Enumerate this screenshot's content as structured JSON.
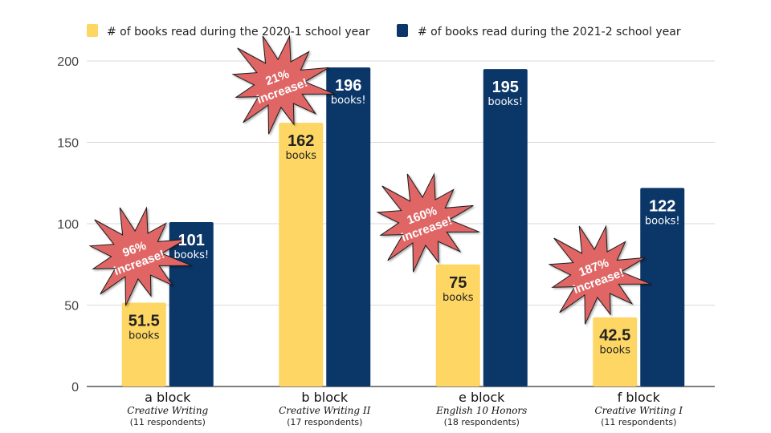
{
  "chart_data": {
    "type": "bar",
    "title": "",
    "xlabel": "",
    "ylabel": "",
    "ylim": [
      0,
      200
    ],
    "yticks": [
      0,
      50,
      100,
      150,
      200
    ],
    "grid": true,
    "legend_position": "top",
    "categories": [
      "a block",
      "b block",
      "e block",
      "f block"
    ],
    "category_subtitles": [
      "Creative Writing",
      "Creative Writing II",
      "English 10 Honors",
      "Creative Writing I"
    ],
    "category_respondents": [
      "(11 respondents)",
      "(17 respondents)",
      "(18 respondents)",
      "(11 respondents)"
    ],
    "series": [
      {
        "name": "# of books read during the 2020-1 school year",
        "color": "#FDD663",
        "values": [
          51.5,
          162,
          75,
          42.5
        ],
        "value_labels": [
          "51.5",
          "162",
          "75",
          "42.5"
        ],
        "unit_label": "books",
        "label_color": "#222222"
      },
      {
        "name": "# of books read during the 2021-2 school year",
        "color": "#0B3668",
        "values": [
          101,
          196,
          195,
          122
        ],
        "value_labels": [
          "101",
          "196",
          "195",
          "122"
        ],
        "unit_label": "books!",
        "label_color": "#ffffff"
      }
    ],
    "annotations": [
      {
        "category": "a block",
        "line1": "96%",
        "line2": "increase!"
      },
      {
        "category": "b block",
        "line1": "21%",
        "line2": "increase!"
      },
      {
        "category": "e block",
        "line1": "160%",
        "line2": "increase!"
      },
      {
        "category": "f block",
        "line1": "187%",
        "line2": "increase!"
      }
    ],
    "annotation_color": "#E06666"
  }
}
